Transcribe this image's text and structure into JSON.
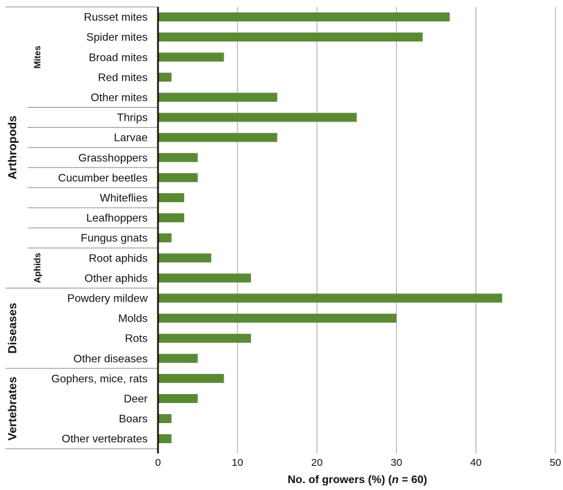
{
  "chart_data": {
    "type": "bar",
    "orientation": "horizontal",
    "xlabel_parts": [
      "No. of growers (%) (",
      "n",
      " = 60)"
    ],
    "xlim": [
      0,
      50
    ],
    "xticks": [
      0,
      10,
      20,
      30,
      40,
      50
    ],
    "grid": "vertical",
    "bar_color": "#5a8a34",
    "categories": [
      "Russet mites",
      "Spider mites",
      "Broad mites",
      "Red mites",
      "Other mites",
      "Thrips",
      "Larvae",
      "Grasshoppers",
      "Cucumber beetles",
      "Whiteflies",
      "Leafhoppers",
      "Fungus gnats",
      "Root aphids",
      "Other aphids",
      "Powdery mildew",
      "Molds",
      "Rots",
      "Other diseases",
      "Gophers, mice, rats",
      "Deer",
      "Boars",
      "Other vertebrates"
    ],
    "values": [
      36.7,
      33.3,
      8.3,
      1.7,
      15.0,
      25.0,
      15.0,
      5.0,
      5.0,
      3.3,
      3.3,
      1.7,
      6.7,
      11.7,
      43.3,
      30.0,
      11.7,
      5.0,
      8.3,
      5.0,
      1.7,
      1.7
    ],
    "groups": [
      {
        "label": "Arthropods",
        "level": 1,
        "from": 0,
        "to": 13
      },
      {
        "label": "Diseases",
        "level": 1,
        "from": 14,
        "to": 17
      },
      {
        "label": "Vertebrates",
        "level": 1,
        "from": 18,
        "to": 21
      },
      {
        "label": "Mites",
        "level": 2,
        "from": 0,
        "to": 4
      },
      {
        "label": "Aphids",
        "level": 2,
        "from": 12,
        "to": 13
      }
    ]
  }
}
